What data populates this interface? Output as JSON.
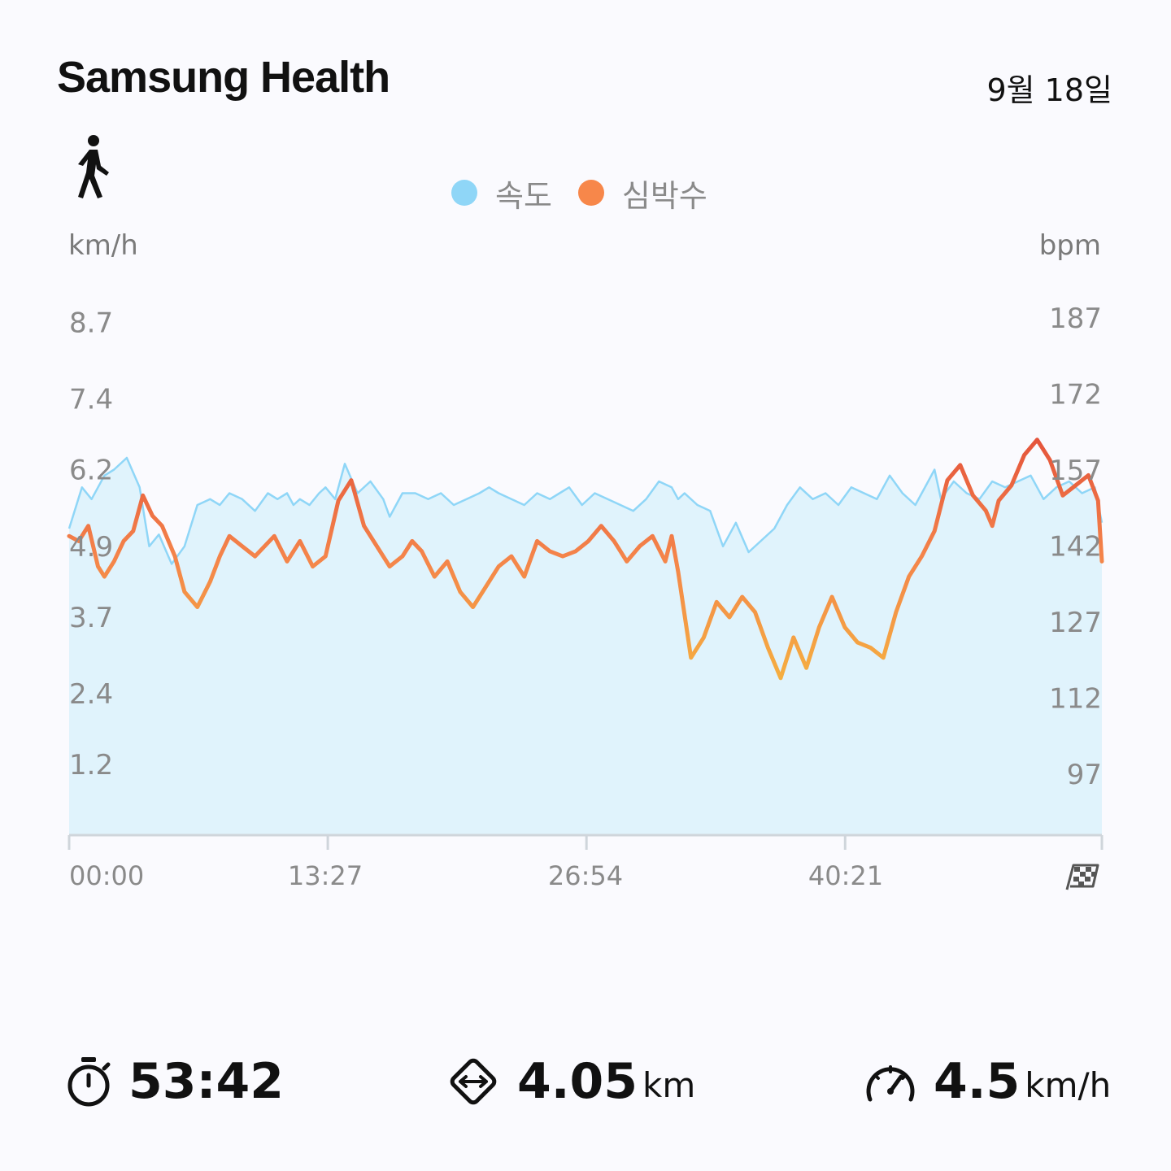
{
  "header": {
    "app_title": "Samsung Health",
    "date": "9월 18일",
    "activity_icon": "walk-icon"
  },
  "legend": [
    {
      "label": "속도",
      "color": "#8fd6f7"
    },
    {
      "label": "심박수",
      "color": "#f7874a"
    }
  ],
  "axes": {
    "left_unit": "km/h",
    "right_unit": "bpm",
    "finish_icon": "checkered-flag-icon"
  },
  "chart_data": {
    "type": "area",
    "x_axis": {
      "label": "",
      "range_seconds": [
        0,
        3222
      ],
      "tick_labels": [
        "00:00",
        "13:27",
        "26:54",
        "40:21"
      ],
      "end_marker": "checkered-flag-icon"
    },
    "y_left": {
      "unit": "km/h",
      "range": [
        0,
        9.2
      ],
      "tick_labels": [
        "8.7",
        "7.4",
        "6.2",
        "4.9",
        "3.7",
        "2.4",
        "1.2"
      ],
      "tick_values": [
        8.7,
        7.4,
        6.2,
        4.9,
        3.7,
        2.4,
        1.2
      ]
    },
    "y_right": {
      "unit": "bpm",
      "range": [
        85,
        192
      ],
      "tick_labels": [
        "187",
        "172",
        "157",
        "142",
        "127",
        "112",
        "97"
      ],
      "tick_values": [
        187,
        172,
        157,
        142,
        127,
        112,
        97
      ]
    },
    "grid": false,
    "legend_position": "top-center",
    "series": [
      {
        "name": "속도",
        "axis": "left",
        "color": "#8fd6f7",
        "x": [
          0,
          40,
          70,
          110,
          140,
          180,
          220,
          250,
          280,
          320,
          360,
          400,
          440,
          470,
          500,
          540,
          580,
          620,
          650,
          680,
          700,
          720,
          750,
          780,
          800,
          830,
          860,
          900,
          940,
          980,
          1000,
          1040,
          1080,
          1120,
          1160,
          1200,
          1240,
          1280,
          1310,
          1340,
          1380,
          1420,
          1460,
          1500,
          1530,
          1560,
          1600,
          1640,
          1680,
          1720,
          1760,
          1800,
          1840,
          1880,
          1900,
          1920,
          1960,
          2000,
          2040,
          2080,
          2120,
          2160,
          2200,
          2240,
          2280,
          2320,
          2360,
          2400,
          2440,
          2480,
          2520,
          2560,
          2600,
          2640,
          2680,
          2700,
          2720,
          2760,
          2800,
          2840,
          2880,
          2920,
          2960,
          3000,
          3040,
          3080,
          3120,
          3160,
          3200,
          3222
        ],
        "values": [
          5.2,
          5.9,
          5.7,
          6.1,
          6.2,
          6.4,
          5.9,
          4.9,
          5.1,
          4.6,
          4.9,
          5.6,
          5.7,
          5.6,
          5.8,
          5.7,
          5.5,
          5.8,
          5.7,
          5.8,
          5.6,
          5.7,
          5.6,
          5.8,
          5.9,
          5.7,
          6.3,
          5.8,
          6.0,
          5.7,
          5.4,
          5.8,
          5.8,
          5.7,
          5.8,
          5.6,
          5.7,
          5.8,
          5.9,
          5.8,
          5.7,
          5.6,
          5.8,
          5.7,
          5.8,
          5.9,
          5.6,
          5.8,
          5.7,
          5.6,
          5.5,
          5.7,
          6.0,
          5.9,
          5.7,
          5.8,
          5.6,
          5.5,
          4.9,
          5.3,
          4.8,
          5.0,
          5.2,
          5.6,
          5.9,
          5.7,
          5.8,
          5.6,
          5.9,
          5.8,
          5.7,
          6.1,
          5.8,
          5.6,
          6.0,
          6.2,
          5.7,
          6.0,
          5.8,
          5.7,
          6.0,
          5.9,
          6.0,
          6.1,
          5.7,
          5.9,
          6.0,
          5.8,
          5.9,
          5.3
        ]
      },
      {
        "name": "심박수",
        "axis": "right",
        "color": "#f7874a",
        "x": [
          0,
          30,
          60,
          90,
          110,
          140,
          170,
          200,
          230,
          260,
          290,
          330,
          360,
          400,
          440,
          470,
          500,
          540,
          580,
          610,
          640,
          680,
          720,
          760,
          800,
          840,
          880,
          920,
          960,
          1000,
          1040,
          1070,
          1100,
          1140,
          1180,
          1220,
          1260,
          1300,
          1340,
          1380,
          1420,
          1460,
          1500,
          1540,
          1580,
          1620,
          1660,
          1700,
          1740,
          1780,
          1820,
          1860,
          1880,
          1900,
          1940,
          1980,
          2020,
          2060,
          2100,
          2140,
          2180,
          2220,
          2260,
          2300,
          2340,
          2380,
          2420,
          2460,
          2500,
          2540,
          2580,
          2620,
          2660,
          2700,
          2740,
          2780,
          2820,
          2860,
          2880,
          2900,
          2940,
          2980,
          3020,
          3060,
          3100,
          3140,
          3180,
          3210,
          3222
        ],
        "values": [
          144,
          143,
          146,
          138,
          136,
          139,
          143,
          145,
          152,
          148,
          146,
          140,
          133,
          130,
          135,
          140,
          144,
          142,
          140,
          142,
          144,
          139,
          143,
          138,
          140,
          151,
          155,
          146,
          142,
          138,
          140,
          143,
          141,
          136,
          139,
          133,
          130,
          134,
          138,
          140,
          136,
          143,
          141,
          140,
          141,
          143,
          146,
          143,
          139,
          142,
          144,
          139,
          144,
          137,
          120,
          124,
          131,
          128,
          132,
          129,
          122,
          116,
          124,
          118,
          126,
          132,
          126,
          123,
          122,
          120,
          129,
          136,
          140,
          145,
          155,
          158,
          152,
          149,
          146,
          151,
          154,
          160,
          163,
          159,
          152,
          154,
          156,
          151,
          139
        ]
      }
    ]
  },
  "stats": [
    {
      "icon": "stopwatch-icon",
      "value": "53:42",
      "unit": ""
    },
    {
      "icon": "distance-icon",
      "value": "4.05",
      "unit": "km"
    },
    {
      "icon": "speedometer-icon",
      "value": "4.5",
      "unit": "km/h"
    }
  ]
}
